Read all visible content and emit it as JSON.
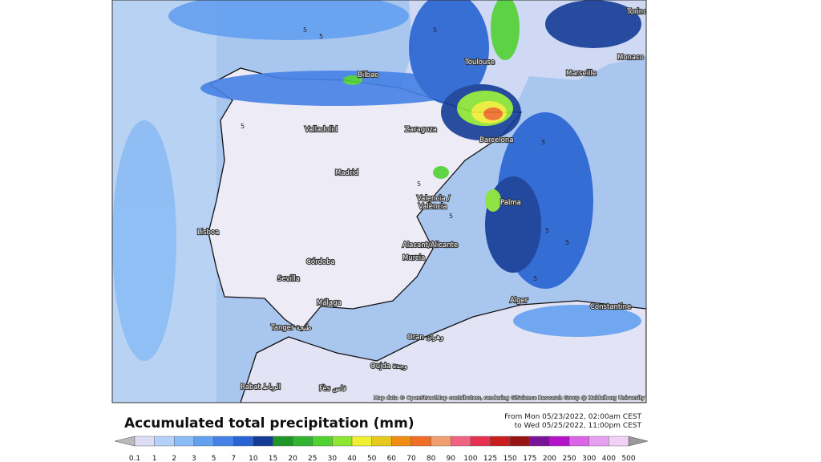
{
  "map": {
    "cities": [
      "Torino",
      "Monaco",
      "Toulouse",
      "Marseille",
      "Bilbao",
      "Valladolid",
      "Zaragoza",
      "Barcelona",
      "Madrid",
      "Valencia /",
      "València",
      "Palma",
      "Lisboa",
      "Alacant/Alicante",
      "Murcia",
      "Córdoba",
      "Sevilla",
      "Málaga",
      "Alger",
      "Constantine",
      "Tanger طنجة",
      "Oran وهران",
      "Oujda وجدة",
      "Rabat الرباط",
      "Fès فاس"
    ],
    "contour_labels": [
      5,
      5,
      5,
      5,
      5,
      5,
      5,
      5,
      5,
      5
    ],
    "attribution": "Map data © OpenStreetMap contributors, rendering GIScience Research Group @ Heidelberg University"
  },
  "legend": {
    "title": "Accumulated total precipitation (mm)",
    "period_from": "From Mon 05/23/2022, 02:00am CEST",
    "period_to": "to Wed 05/25/2022, 11:00pm CEST",
    "ticks": [
      0.1,
      1,
      2,
      3,
      5,
      7,
      10,
      15,
      20,
      25,
      30,
      40,
      50,
      60,
      70,
      80,
      90,
      100,
      125,
      150,
      175,
      200,
      250,
      300,
      400,
      500
    ],
    "colors": [
      "#dcdcf5",
      "#b4d2f8",
      "#8cbcf5",
      "#64a0f0",
      "#4682e6",
      "#2864d2",
      "#143c96",
      "#1e9628",
      "#32b432",
      "#50d232",
      "#8ce632",
      "#f0f032",
      "#e6c81e",
      "#f08c14",
      "#f06e28",
      "#f0a070",
      "#f06482",
      "#e63250",
      "#c81e1e",
      "#961414",
      "#7a1496",
      "#b414c8",
      "#dc64e6",
      "#e6a0f0",
      "#f0d2f5"
    ]
  }
}
